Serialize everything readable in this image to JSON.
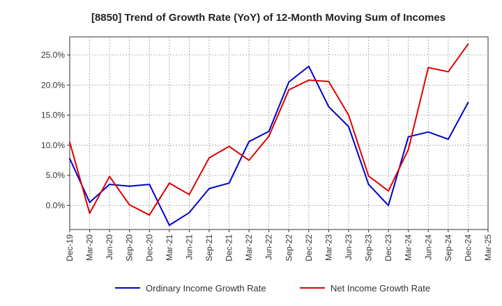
{
  "chart_data": {
    "type": "line",
    "title": "[8850]  Trend of Growth Rate (YoY) of 12-Month Moving Sum of Incomes",
    "xlabel": "",
    "ylabel": "",
    "x": [
      "Dec-19",
      "Mar-20",
      "Jun-20",
      "Sep-20",
      "Dec-20",
      "Mar-21",
      "Jun-21",
      "Sep-21",
      "Dec-21",
      "Mar-22",
      "Jun-22",
      "Sep-22",
      "Dec-22",
      "Mar-23",
      "Jun-23",
      "Sep-23",
      "Dec-23",
      "Mar-24",
      "Jun-24",
      "Sep-24",
      "Dec-24",
      "Mar-25"
    ],
    "ylim": [
      -4,
      28
    ],
    "yticks": [
      0,
      5,
      10,
      15,
      20,
      25
    ],
    "ytick_labels": [
      "0.0%",
      "5.0%",
      "10.0%",
      "15.0%",
      "20.0%",
      "25.0%"
    ],
    "grid": true,
    "legend_position": "bottom",
    "series": [
      {
        "name": "Ordinary Income Growth Rate",
        "color": "#0000cc",
        "values": [
          7.8,
          0.5,
          3.5,
          3.2,
          3.5,
          -3.3,
          -1.2,
          2.8,
          3.7,
          10.6,
          12.3,
          20.5,
          23.1,
          16.4,
          13.1,
          3.5,
          0.0,
          11.4,
          12.2,
          11.0,
          17.1,
          null
        ]
      },
      {
        "name": "Net Income Growth Rate",
        "color": "#dd0000",
        "values": [
          10.5,
          -1.3,
          4.8,
          0.1,
          -1.6,
          3.7,
          1.8,
          7.9,
          9.8,
          7.5,
          11.5,
          19.2,
          20.8,
          20.6,
          15.0,
          4.9,
          2.4,
          9.3,
          22.9,
          22.2,
          26.8,
          null
        ]
      }
    ]
  }
}
